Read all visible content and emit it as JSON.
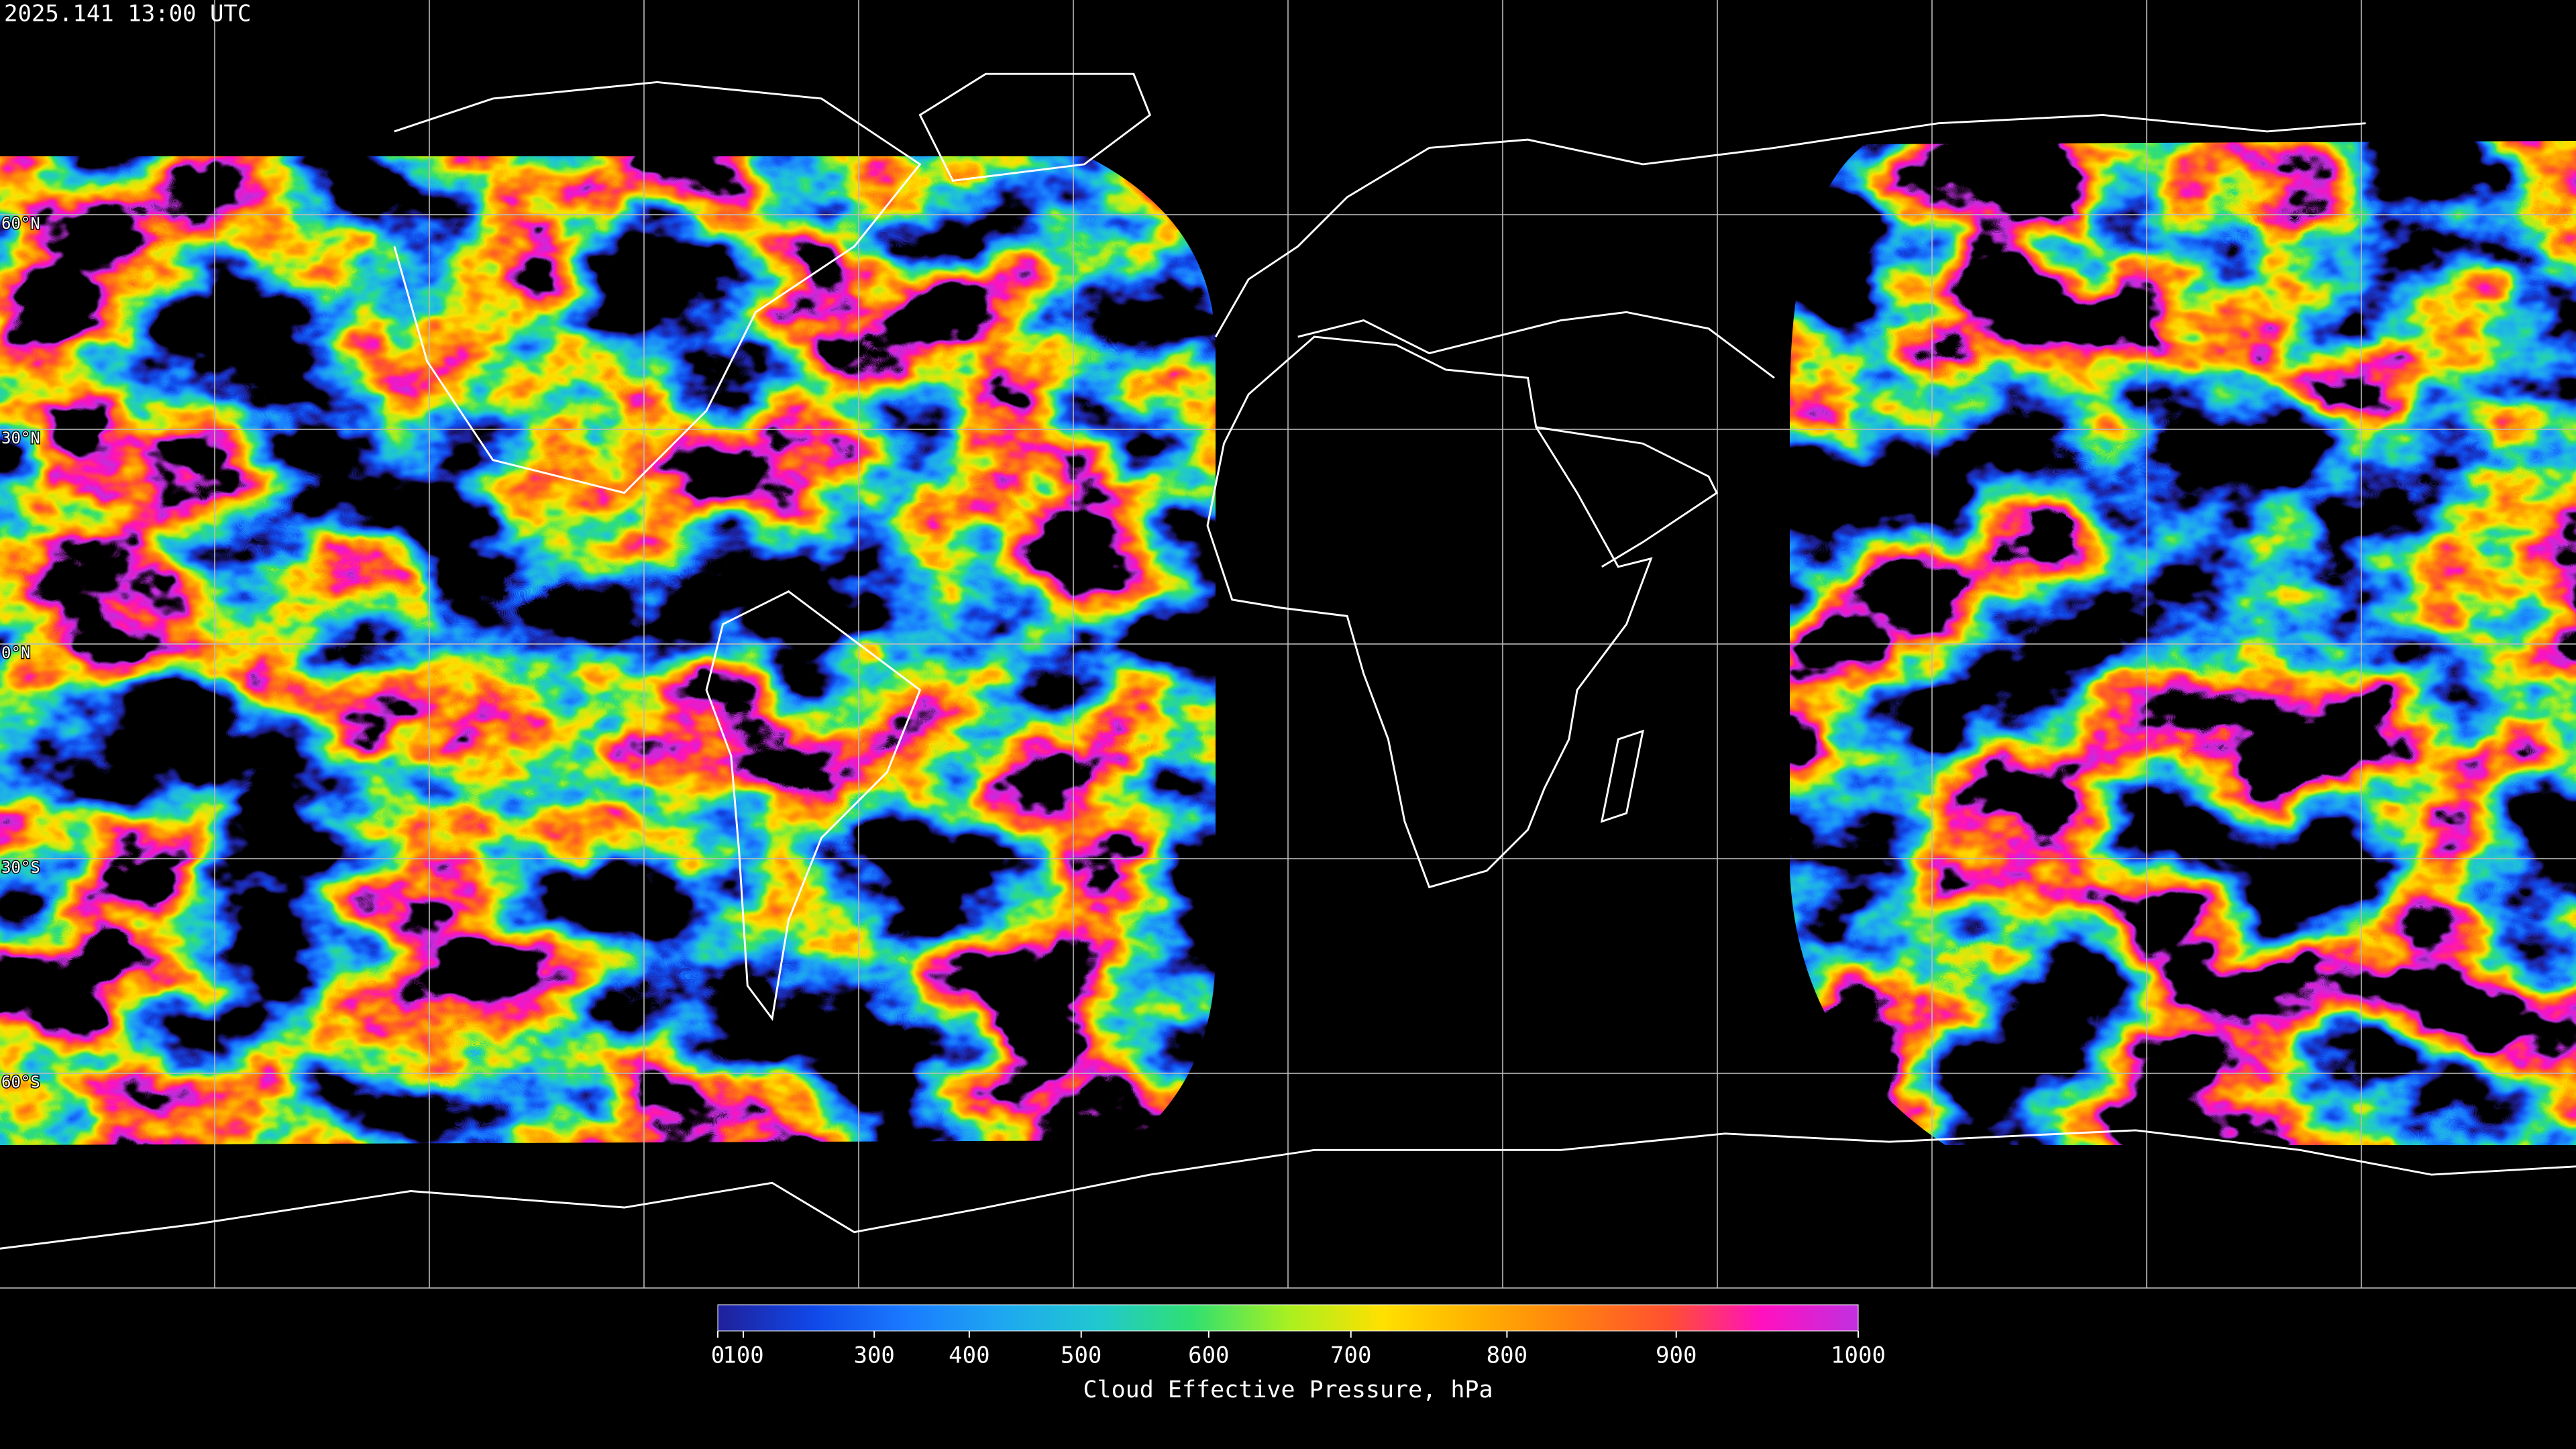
{
  "timestamp": "2025.141 13:00 UTC",
  "latitude_labels": [
    "60°N",
    "30°N",
    "0°N",
    "30°S",
    "60°S"
  ],
  "colorbar": {
    "label": "Cloud Effective Pressure, hPa",
    "lim": [
      0,
      1000
    ],
    "ticks": [
      0,
      100,
      300,
      400,
      500,
      600,
      700,
      800,
      900,
      1000
    ],
    "colors": [
      "#20209a",
      "#1048e8",
      "#1a7cff",
      "#1ea8f0",
      "#20c8d0",
      "#30e070",
      "#a8f020",
      "#ffe000",
      "#ffb000",
      "#ff8010",
      "#ff5030",
      "#ff10c0",
      "#c030e0"
    ]
  }
}
